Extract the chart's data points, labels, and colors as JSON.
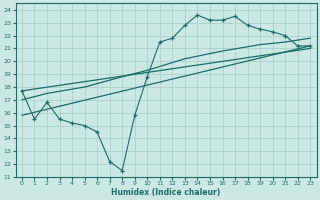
{
  "xlabel": "Humidex (Indice chaleur)",
  "xlim": [
    -0.5,
    23.5
  ],
  "ylim": [
    11,
    24.5
  ],
  "yticks": [
    11,
    12,
    13,
    14,
    15,
    16,
    17,
    18,
    19,
    20,
    21,
    22,
    23,
    24
  ],
  "xticks": [
    0,
    1,
    2,
    3,
    4,
    5,
    6,
    7,
    8,
    9,
    10,
    11,
    12,
    13,
    14,
    15,
    16,
    17,
    18,
    19,
    20,
    21,
    22,
    23
  ],
  "bg_color": "#cce8e4",
  "grid_color": "#aacfca",
  "line_color": "#1a6b6b",
  "zigzag_x": [
    0,
    1,
    2,
    3,
    4,
    5,
    6,
    7,
    8,
    9,
    10,
    11,
    12,
    13,
    14,
    15,
    16,
    17,
    18,
    19,
    20,
    21,
    22,
    23
  ],
  "zigzag_y": [
    17.7,
    15.5,
    16.8,
    15.5,
    15.2,
    15.0,
    14.5,
    12.2,
    11.5,
    15.8,
    18.8,
    21.5,
    21.8,
    22.8,
    23.6,
    23.2,
    23.2,
    23.5,
    22.8,
    22.5,
    22.3,
    22.0,
    21.2,
    21.2
  ],
  "line1_x": [
    0,
    23
  ],
  "line1_y": [
    15.8,
    21.2
  ],
  "line2_x": [
    0,
    23
  ],
  "line2_y": [
    17.7,
    21.0
  ],
  "smooth_x": [
    0,
    2,
    5,
    8,
    10,
    13,
    16,
    19,
    21,
    23
  ],
  "smooth_y": [
    17.0,
    17.5,
    18.0,
    18.8,
    19.3,
    20.2,
    20.8,
    21.3,
    21.5,
    21.8
  ]
}
